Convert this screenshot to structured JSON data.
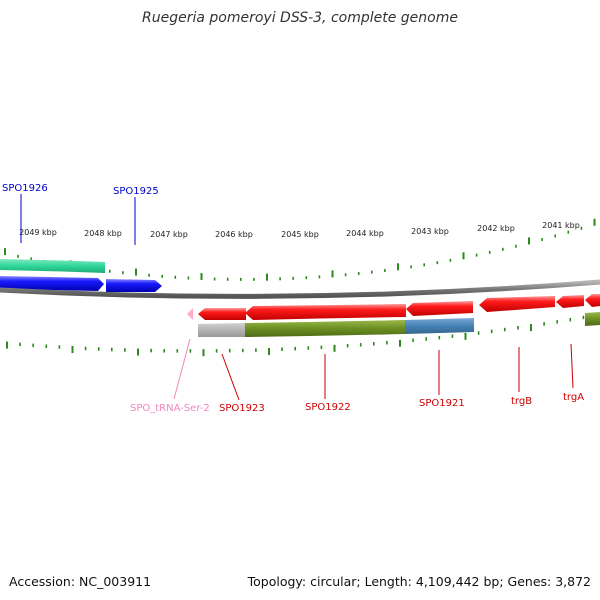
{
  "title": "Ruegeria pomeroyi DSS-3, complete genome",
  "footer": {
    "accession": "Accession: NC_003911",
    "summary": "Topology: circular; Length: 4,109,442 bp; Genes: 3,872"
  },
  "scale_labels": [
    "2049 kbp",
    "2048 kbp",
    "2047 kbp",
    "2046 kbp",
    "2045 kbp",
    "2044 kbp",
    "2043 kbp",
    "2042 kbp",
    "2041 kbp"
  ],
  "gene_labels": [
    {
      "name": "SPO1926",
      "color": "#0000cc"
    },
    {
      "name": "SPO1925",
      "color": "#0000cc"
    },
    {
      "name": "SPO_tRNA-Ser-2",
      "color": "#ee88bb"
    },
    {
      "name": "SPO1923",
      "color": "#cc0000"
    },
    {
      "name": "SPO1922",
      "color": "#cc0000"
    },
    {
      "name": "SPO1921",
      "color": "#cc0000"
    },
    {
      "name": "trgB",
      "color": "#cc0000"
    },
    {
      "name": "trgA",
      "color": "#cc0000"
    }
  ],
  "colors": {
    "tick": "#2a8a1a",
    "backbone": "#808080",
    "forward_gene": "#0000ee",
    "reverse_gene": "#ee0000",
    "trna": "#ffaacc",
    "feature_teal": "#2ed69a",
    "feature_olive": "#6b8e23",
    "feature_steelblue": "#4682b4",
    "feature_gray": "#b3b3b3"
  }
}
